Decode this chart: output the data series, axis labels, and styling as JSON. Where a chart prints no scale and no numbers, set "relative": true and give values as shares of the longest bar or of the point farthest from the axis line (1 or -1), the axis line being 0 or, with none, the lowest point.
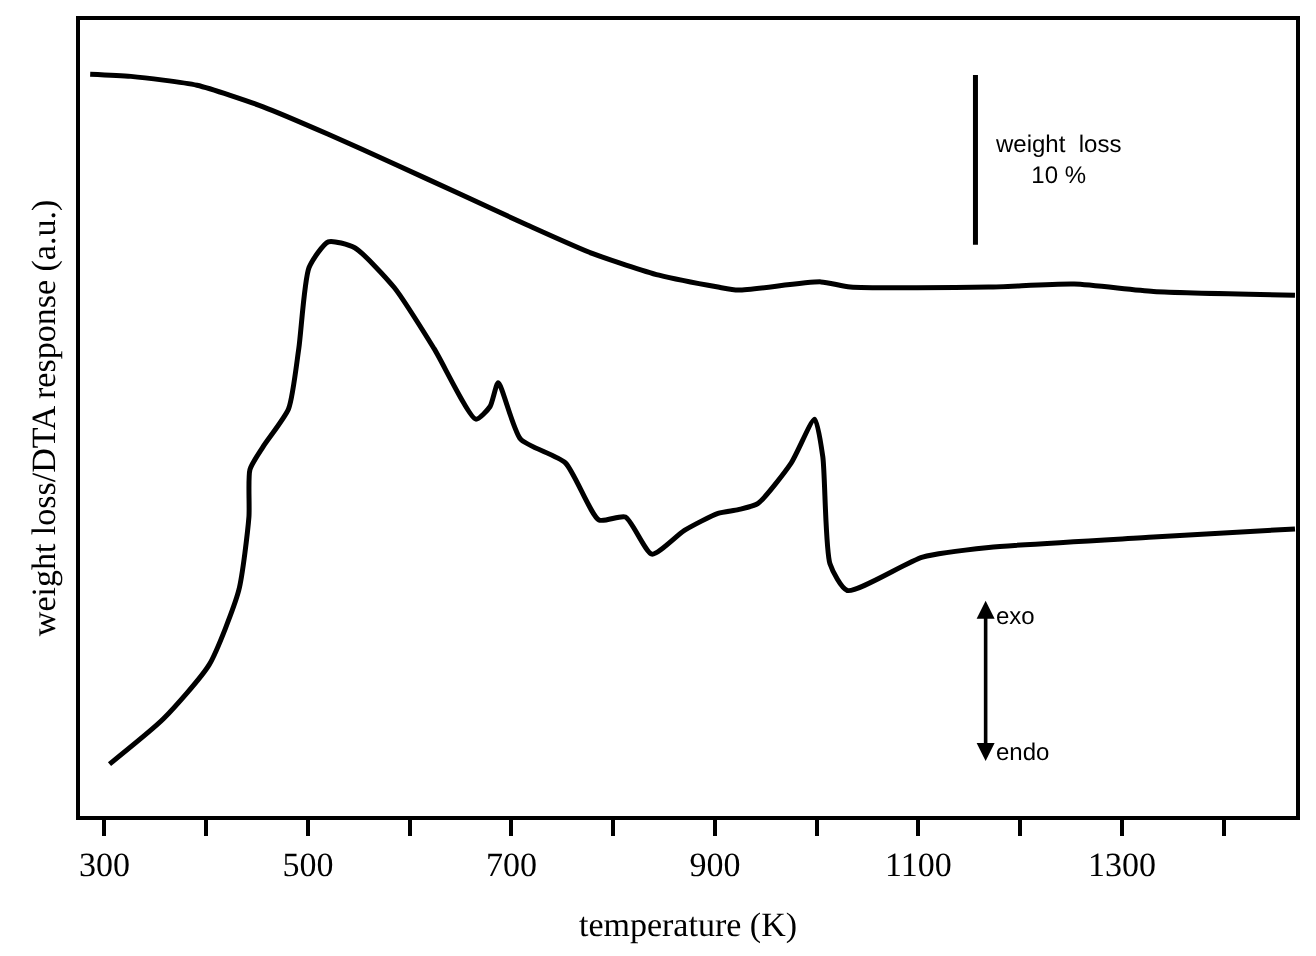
{
  "chart_data": {
    "type": "line",
    "relative": true,
    "xlabel": "temperature (K)",
    "ylabel": "weight loss/DTA response (a.u.)",
    "xlim": [
      276,
      1471
    ],
    "xticks": [
      300,
      {
        "value": 400,
        "label": null
      },
      500,
      {
        "value": 600,
        "label": null
      },
      700,
      {
        "value": 800,
        "label": null
      },
      900,
      {
        "value": 1000,
        "label": null
      },
      1100,
      {
        "value": 1200,
        "label": null
      },
      1300,
      {
        "value": 1400,
        "label": null
      }
    ],
    "marker": "none",
    "line_style": "solid",
    "annotations": [
      "weight  loss\n10 %",
      "exo",
      "endo"
    ],
    "series": [
      {
        "color": "#000000",
        "x": [
          286,
          326,
          391,
          456,
          520,
          585,
          650,
          715,
          780,
          845,
          903,
          923,
          1004,
          1033,
          1169,
          1253,
          1331,
          1470
        ],
        "values": [
          1.0,
          0.997,
          0.985,
          0.956,
          0.919,
          0.879,
          0.838,
          0.797,
          0.758,
          0.729,
          0.713,
          0.709,
          0.72,
          0.713,
          0.713,
          0.717,
          0.707,
          0.702
        ]
      },
      {
        "color": "#000000",
        "x": [
          1156,
          1156
        ],
        "values": [
          0.999,
          0.77
        ]
      },
      {
        "color": "#000000",
        "x": [
          305,
          358,
          403,
          432,
          442,
          443,
          456,
          481,
          491,
          501,
          520,
          546,
          585,
          624,
          665,
          679,
          687,
          709,
          753,
          786,
          812,
          838,
          870,
          903,
          923,
          942,
          975,
          998,
          1006,
          1013,
          1030,
          1104,
          1169,
          1331,
          1470
        ],
        "values": [
          0.07,
          0.131,
          0.204,
          0.304,
          0.403,
          0.467,
          0.498,
          0.549,
          0.63,
          0.739,
          0.774,
          0.766,
          0.712,
          0.63,
          0.535,
          0.552,
          0.584,
          0.508,
          0.476,
          0.399,
          0.403,
          0.353,
          0.385,
          0.408,
          0.413,
          0.421,
          0.476,
          0.535,
          0.484,
          0.34,
          0.304,
          0.349,
          0.362,
          0.376,
          0.387
        ]
      }
    ]
  }
}
